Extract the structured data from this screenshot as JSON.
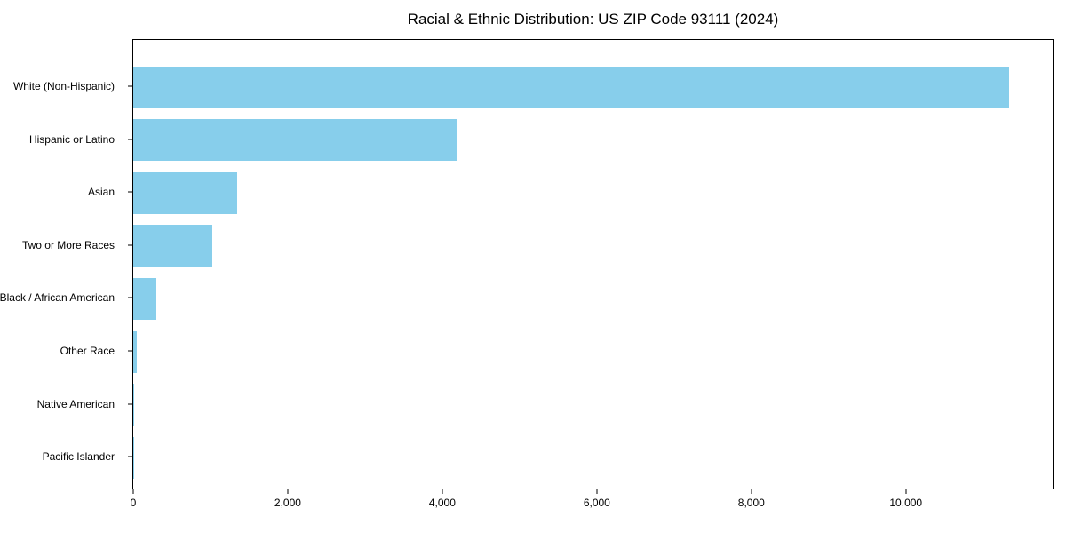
{
  "title": "Racial & Ethnic Distribution: US ZIP Code 93111 (2024)",
  "colors": {
    "bar": "#87CEEB",
    "axis": "#000000",
    "background": "#FFFFFF",
    "text": "#000000"
  },
  "chart_data": {
    "type": "bar",
    "orientation": "horizontal",
    "title": "Racial & Ethnic Distribution: US ZIP Code 93111 (2024)",
    "xlabel": "",
    "ylabel": "",
    "categories": [
      "White (Non-Hispanic)",
      "Hispanic or Latino",
      "Asian",
      "Two or More Races",
      "Black / African American",
      "Other Race",
      "Native American",
      "Pacific Islander"
    ],
    "values": [
      11340,
      4200,
      1350,
      1020,
      300,
      50,
      15,
      5
    ],
    "xlim": [
      0,
      11900
    ],
    "xticks": [
      0,
      2000,
      4000,
      6000,
      8000,
      10000
    ],
    "xtick_labels": [
      "0",
      "2,000",
      "4,000",
      "6,000",
      "8,000",
      "10,000"
    ],
    "bar_color": "#87CEEB",
    "grid": false,
    "legend": null,
    "frame": "full-box"
  }
}
